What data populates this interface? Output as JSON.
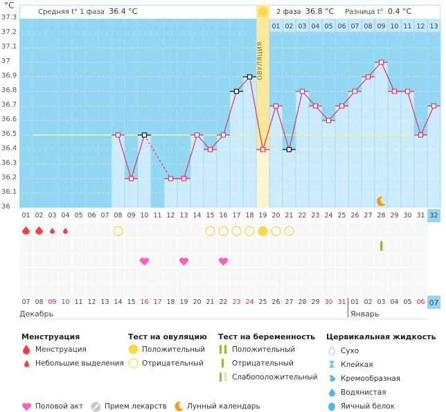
{
  "chart_data": {
    "type": "line",
    "title": "",
    "ylabel": "°C",
    "ylim": [
      36.0,
      37.3
    ],
    "yticks": [
      "37.3",
      "37.2",
      "37.1",
      "37",
      "36.9",
      "36.8",
      "36.7",
      "36.6",
      "36.5",
      "36.4",
      "36.3",
      "36.2",
      "36.1",
      "36"
    ],
    "cycle_days": [
      "01",
      "02",
      "03",
      "04",
      "05",
      "06",
      "07",
      "08",
      "09",
      "10",
      "11",
      "12",
      "13",
      "14",
      "15",
      "16",
      "17",
      "18",
      "19",
      "20",
      "21",
      "22",
      "23",
      "24",
      "25",
      "26",
      "27",
      "28",
      "29",
      "30",
      "31",
      "32"
    ],
    "calendar_dates": [
      "07",
      "08",
      "09",
      "10",
      "11",
      "12",
      "13",
      "14",
      "15",
      "16",
      "17",
      "18",
      "19",
      "20",
      "21",
      "22",
      "23",
      "24",
      "25",
      "26",
      "27",
      "28",
      "29",
      "30",
      "31",
      "01",
      "02",
      "03",
      "04",
      "05",
      "06",
      "07"
    ],
    "weekend_dates_index": [
      2,
      3,
      9,
      10,
      16,
      17,
      23,
      24,
      30
    ],
    "phase2_days": [
      "01",
      "02",
      "03",
      "04",
      "05",
      "06",
      "07",
      "08",
      "09",
      "10",
      "11",
      "12",
      "13"
    ],
    "months": [
      "Декабрь",
      "Январь"
    ],
    "coverline": 36.5,
    "ovulation_day": 19,
    "ovulation_label": "ОВУЛЯЦИЯ",
    "series": [
      {
        "name": "Температура",
        "points": [
          {
            "day": 8,
            "t": 36.5
          },
          {
            "day": 9,
            "t": 36.2
          },
          {
            "day": 10,
            "t": 36.5,
            "flag": true
          },
          {
            "day": 12,
            "t": 36.2,
            "dashed_from_prev": true
          },
          {
            "day": 13,
            "t": 36.2
          },
          {
            "day": 14,
            "t": 36.5
          },
          {
            "day": 15,
            "t": 36.4
          },
          {
            "day": 16,
            "t": 36.5
          },
          {
            "day": 17,
            "t": 36.8,
            "flag": true
          },
          {
            "day": 18,
            "t": 36.9,
            "flag": true
          },
          {
            "day": 19,
            "t": 36.4
          },
          {
            "day": 20,
            "t": 36.7
          },
          {
            "day": 21,
            "t": 36.4,
            "flag": true
          },
          {
            "day": 22,
            "t": 36.8
          },
          {
            "day": 23,
            "t": 36.7
          },
          {
            "day": 24,
            "t": 36.6
          },
          {
            "day": 25,
            "t": 36.7
          },
          {
            "day": 26,
            "t": 36.8
          },
          {
            "day": 27,
            "t": 36.9
          },
          {
            "day": 28,
            "t": 37.0
          },
          {
            "day": 29,
            "t": 36.8
          },
          {
            "day": 30,
            "t": 36.8
          },
          {
            "day": 31,
            "t": 36.5
          },
          {
            "day": 32,
            "t": 36.7
          }
        ]
      }
    ],
    "events": {
      "menstruation": [
        {
          "day": 1,
          "kind": "full"
        },
        {
          "day": 2,
          "kind": "full"
        },
        {
          "day": 3,
          "kind": "light"
        },
        {
          "day": 4,
          "kind": "light"
        }
      ],
      "ovulation_test": [
        {
          "day": 8,
          "result": "negative"
        },
        {
          "day": 15,
          "result": "negative"
        },
        {
          "day": 16,
          "result": "negative"
        },
        {
          "day": 17,
          "result": "negative"
        },
        {
          "day": 18,
          "result": "negative"
        },
        {
          "day": 19,
          "result": "positive"
        },
        {
          "day": 20,
          "result": "negative"
        },
        {
          "day": 21,
          "result": "negative"
        }
      ],
      "pregnancy_test": [
        {
          "day": 28,
          "result": "negative"
        }
      ],
      "intercourse": [
        10,
        13,
        16
      ],
      "lunar": [
        28
      ]
    }
  },
  "header": {
    "unit": "°C",
    "phase1_label": "Средняя t° 1 фаза",
    "phase1_value": "36.4 °C",
    "phase2_label": "2 фаза",
    "phase2_value": "36.8 °C",
    "diff_label": "Разница t°",
    "diff_value": "0.4 °C"
  },
  "colors": {
    "chart_bg": "#93d7f2",
    "bar_fill": "#cdecfb",
    "line": "#e8305f",
    "ovulation": "#fbe89a",
    "coverline": "#f5f0a0",
    "drop": "#f2404a",
    "heart": "#f763b6",
    "ovu_yellow": "#fcd94a",
    "preg_green": "#93c01f",
    "moon": "#f59a1b"
  },
  "legend": {
    "menstruation": {
      "title": "Менструация",
      "items": [
        "Менструация",
        "Небольшие выделения"
      ]
    },
    "ovulation_test": {
      "title": "Тест на овуляцию",
      "items": [
        "Положительный",
        "Отрицательный"
      ]
    },
    "pregnancy_test": {
      "title": "Тест на беременность",
      "items": [
        "Положительный",
        "Отрицательный",
        "Слабоположительный"
      ]
    },
    "cervical": {
      "title": "Цервикальная жидкость",
      "items": [
        "Сухо",
        "Клейкая",
        "Кремообразная",
        "Водянистая",
        "Яичный белок"
      ]
    },
    "other": [
      "Половой акт",
      "Прием лекарств",
      "Лунный календарь"
    ]
  }
}
